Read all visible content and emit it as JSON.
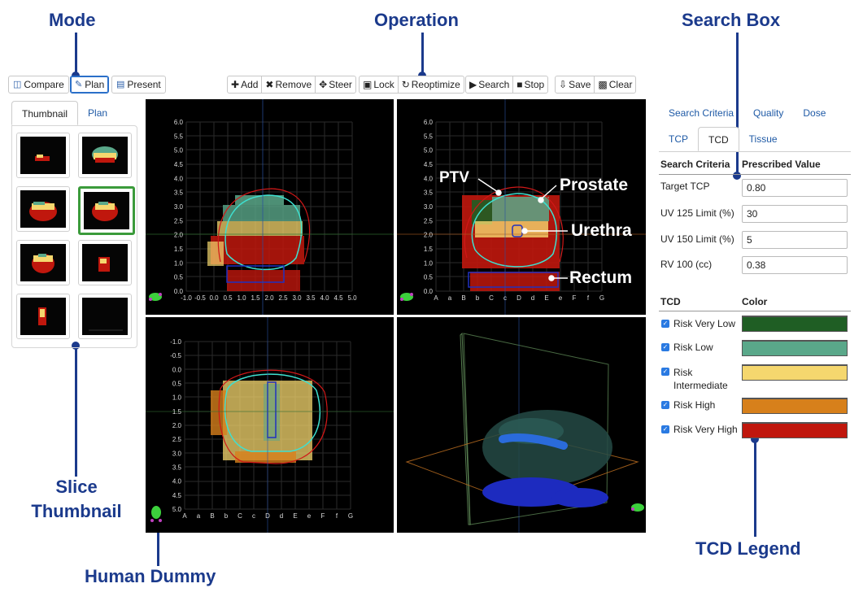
{
  "callouts": {
    "mode": "Mode",
    "operation": "Operation",
    "search_box": "Search Box",
    "slice_thumbnail_1": "Slice",
    "slice_thumbnail_2": "Thumbnail",
    "human_dummy": "Human Dummy",
    "tcd_legend": "TCD Legend"
  },
  "mode_buttons": {
    "compare": "Compare",
    "plan": "Plan",
    "present": "Present"
  },
  "operation_buttons": {
    "add": "Add",
    "remove": "Remove",
    "steer": "Steer",
    "lock": "Lock",
    "reoptimize": "Reoptimize",
    "search": "Search",
    "stop": "Stop",
    "save": "Save",
    "clear": "Clear"
  },
  "left_tabs": {
    "thumbnail": "Thumbnail",
    "plan": "Plan"
  },
  "viewer": {
    "axial_y_ticks": [
      "6.0",
      "5.5",
      "5.0",
      "4.5",
      "4.0",
      "3.5",
      "3.0",
      "2.5",
      "2.0",
      "1.5",
      "1.0",
      "0.5",
      "0.0"
    ],
    "axial_x_ticks": [
      "-1.0",
      "-0.5",
      "0.0",
      "0.5",
      "1.0",
      "1.5",
      "2.0",
      "2.5",
      "3.0",
      "3.5",
      "4.0",
      "4.5",
      "5.0"
    ],
    "letter_x_ticks": [
      "A",
      "a",
      "B",
      "b",
      "C",
      "c",
      "D",
      "d",
      "E",
      "e",
      "F",
      "f",
      "G"
    ],
    "coronal_y_ticks": [
      "-1.0",
      "-0.5",
      "0.0",
      "0.5",
      "1.0",
      "1.5",
      "2.0",
      "2.5",
      "3.0",
      "3.5",
      "4.0",
      "4.5",
      "5.0"
    ],
    "labels": {
      "ptv": "PTV",
      "prostate": "Prostate",
      "urethra": "Urethra",
      "rectum": "Rectum"
    }
  },
  "right_panel": {
    "tabs_row1": [
      "Search Criteria",
      "Quality",
      "Dose"
    ],
    "tabs_row2": [
      "TCP",
      "TCD",
      "Tissue"
    ],
    "active_tab": "TCD",
    "criteria_header": "Search Criteria",
    "value_header": "Prescribed Value",
    "criteria": [
      {
        "label": "Target TCP",
        "value": "0.80"
      },
      {
        "label": "UV 125 Limit (%)",
        "value": "30"
      },
      {
        "label": "UV 150 Limit (%)",
        "value": "5"
      },
      {
        "label": "RV 100 (cc)",
        "value": "0.38"
      }
    ],
    "legend_header": "TCD",
    "color_header": "Color",
    "legend": [
      {
        "label": "Risk Very Low",
        "color": "#1f5e24"
      },
      {
        "label": "Risk Low",
        "color": "#5aa88a"
      },
      {
        "label": "Risk Intermediate",
        "label1": "Risk",
        "label2": "Intermediate",
        "color": "#f5d76e"
      },
      {
        "label": "Risk High",
        "color": "#d7801b"
      },
      {
        "label": "Risk Very High",
        "color": "#c0170d"
      }
    ]
  },
  "colors": {
    "accent": "#1b3a8c",
    "link": "#1f5aa6",
    "selected_thumb": "#3b9b3b"
  }
}
